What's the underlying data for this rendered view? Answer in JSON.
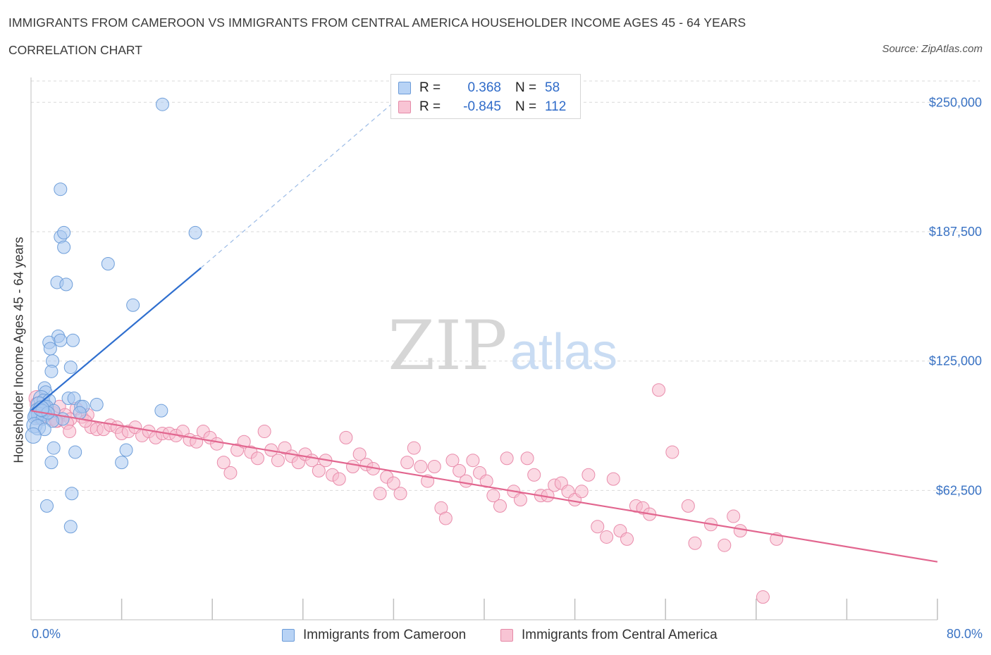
{
  "title": "IMMIGRANTS FROM CAMEROON VS IMMIGRANTS FROM CENTRAL AMERICA HOUSEHOLDER INCOME AGES 45 - 64 YEARS",
  "subtitle": "CORRELATION CHART",
  "source": "Source: ZipAtlas.com",
  "watermark": {
    "zip": "ZIP",
    "atlas": "atlas"
  },
  "colors": {
    "blue_fill": "#a9c8f0",
    "blue_stroke": "#6f9fda",
    "blue_line": "#2f6fcf",
    "pink_fill": "#f7bccd",
    "pink_stroke": "#e98cab",
    "pink_line": "#e2668f",
    "axis_text": "#3a73c4",
    "grid": "#d9d9d9"
  },
  "stats_legend": [
    {
      "r_label": "R =",
      "r_value": "0.368",
      "n_label": "N =",
      "n_value": "58"
    },
    {
      "r_label": "R =",
      "r_value": "-0.845",
      "n_label": "N =",
      "n_value": "112"
    }
  ],
  "legend": [
    {
      "label": "Immigrants from Cameroon"
    },
    {
      "label": "Immigrants from Central America"
    }
  ],
  "chart_data": {
    "type": "scatter",
    "title": "IMMIGRANTS FROM CAMEROON VS IMMIGRANTS FROM CENTRAL AMERICA HOUSEHOLDER INCOME AGES 45 - 64 YEARS",
    "subtitle": "CORRELATION CHART",
    "xlabel": "",
    "ylabel": "Householder Income Ages 45 - 64 years",
    "xlim": [
      0,
      80
    ],
    "ylim": [
      0,
      262000
    ],
    "x_tick_labels": [
      "0.0%",
      "80.0%"
    ],
    "y_ticks": [
      62500,
      125000,
      187500,
      250000
    ],
    "y_tick_labels": [
      "$62,500",
      "$125,000",
      "$187,500",
      "$250,000"
    ],
    "grid": true,
    "legend_position": "bottom",
    "series": [
      {
        "name": "Immigrants from Cameroon",
        "color": "#a9c8f0",
        "trend": {
          "x": [
            0.0,
            15.0
          ],
          "y": [
            101000,
            170000
          ],
          "dashed_to": [
            32.0,
            250000
          ]
        },
        "points": [
          [
            11.6,
            249000
          ],
          [
            2.6,
            208000
          ],
          [
            2.6,
            185000
          ],
          [
            2.9,
            187000
          ],
          [
            2.9,
            180000
          ],
          [
            14.5,
            187000
          ],
          [
            6.8,
            172000
          ],
          [
            2.3,
            163000
          ],
          [
            3.1,
            162000
          ],
          [
            9.0,
            152000
          ],
          [
            2.4,
            137000
          ],
          [
            3.7,
            135000
          ],
          [
            1.6,
            134000
          ],
          [
            2.6,
            135000
          ],
          [
            1.7,
            131000
          ],
          [
            1.9,
            125000
          ],
          [
            1.8,
            120000
          ],
          [
            3.5,
            122000
          ],
          [
            1.2,
            112000
          ],
          [
            1.3,
            110000
          ],
          [
            0.9,
            107000
          ],
          [
            1.1,
            106000
          ],
          [
            1.6,
            106000
          ],
          [
            3.3,
            107000
          ],
          [
            3.8,
            107000
          ],
          [
            0.7,
            104000
          ],
          [
            1.2,
            103000
          ],
          [
            1.4,
            103000
          ],
          [
            4.4,
            103000
          ],
          [
            4.6,
            103000
          ],
          [
            5.8,
            104000
          ],
          [
            0.6,
            101000
          ],
          [
            0.8,
            101000
          ],
          [
            2.0,
            101000
          ],
          [
            4.3,
            100000
          ],
          [
            0.5,
            99000
          ],
          [
            0.7,
            99000
          ],
          [
            1.3,
            99000
          ],
          [
            0.4,
            98000
          ],
          [
            1.0,
            97000
          ],
          [
            2.8,
            97000
          ],
          [
            1.9,
            96000
          ],
          [
            11.5,
            101000
          ],
          [
            0.3,
            94000
          ],
          [
            0.6,
            93000
          ],
          [
            1.2,
            92000
          ],
          [
            0.2,
            89000
          ],
          [
            2.0,
            83000
          ],
          [
            3.9,
            81000
          ],
          [
            8.4,
            82000
          ],
          [
            1.8,
            76000
          ],
          [
            8.0,
            76000
          ],
          [
            3.6,
            61000
          ],
          [
            1.4,
            55000
          ],
          [
            3.5,
            45000
          ],
          [
            1.0,
            101000
          ],
          [
            1.5,
            100000
          ],
          [
            0.9,
            102000
          ]
        ]
      },
      {
        "name": "Immigrants from Central America",
        "color": "#f7bccd",
        "trend": {
          "x": [
            0.0,
            80.0
          ],
          "y": [
            101000,
            28000
          ]
        },
        "points": [
          [
            0.5,
            107000
          ],
          [
            1.0,
            103000
          ],
          [
            1.5,
            101000
          ],
          [
            2.0,
            100000
          ],
          [
            2.5,
            103000
          ],
          [
            3.0,
            99000
          ],
          [
            3.5,
            97000
          ],
          [
            4.0,
            102000
          ],
          [
            4.5,
            98000
          ],
          [
            5.0,
            99000
          ],
          [
            0.8,
            98000
          ],
          [
            1.8,
            97000
          ],
          [
            2.3,
            96000
          ],
          [
            3.2,
            95000
          ],
          [
            3.4,
            91000
          ],
          [
            5.3,
            93000
          ],
          [
            5.8,
            92000
          ],
          [
            6.4,
            92000
          ],
          [
            7.0,
            94000
          ],
          [
            7.6,
            93000
          ],
          [
            8.0,
            90000
          ],
          [
            8.6,
            91000
          ],
          [
            9.2,
            93000
          ],
          [
            9.8,
            89000
          ],
          [
            10.4,
            91000
          ],
          [
            11.0,
            88000
          ],
          [
            11.6,
            90000
          ],
          [
            12.2,
            90000
          ],
          [
            12.8,
            89000
          ],
          [
            13.4,
            91000
          ],
          [
            14.0,
            87000
          ],
          [
            14.6,
            86000
          ],
          [
            15.2,
            91000
          ],
          [
            15.8,
            88000
          ],
          [
            16.4,
            85000
          ],
          [
            17.0,
            76000
          ],
          [
            17.6,
            71000
          ],
          [
            18.2,
            82000
          ],
          [
            18.8,
            86000
          ],
          [
            19.4,
            81000
          ],
          [
            20.0,
            78000
          ],
          [
            20.6,
            91000
          ],
          [
            21.2,
            82000
          ],
          [
            21.8,
            77000
          ],
          [
            22.4,
            83000
          ],
          [
            23.0,
            79000
          ],
          [
            23.6,
            76000
          ],
          [
            24.2,
            80000
          ],
          [
            24.8,
            77000
          ],
          [
            25.4,
            72000
          ],
          [
            26.0,
            77000
          ],
          [
            26.6,
            70000
          ],
          [
            27.2,
            68000
          ],
          [
            27.8,
            88000
          ],
          [
            28.4,
            74000
          ],
          [
            29.0,
            80000
          ],
          [
            29.6,
            75000
          ],
          [
            30.2,
            73000
          ],
          [
            30.8,
            61000
          ],
          [
            31.4,
            69000
          ],
          [
            32.0,
            66000
          ],
          [
            32.6,
            61000
          ],
          [
            33.2,
            76000
          ],
          [
            33.8,
            83000
          ],
          [
            34.4,
            74000
          ],
          [
            35.0,
            67000
          ],
          [
            35.6,
            74000
          ],
          [
            36.2,
            54000
          ],
          [
            36.6,
            49000
          ],
          [
            37.2,
            77000
          ],
          [
            37.8,
            72000
          ],
          [
            38.4,
            67000
          ],
          [
            39.0,
            77000
          ],
          [
            39.6,
            71000
          ],
          [
            40.2,
            67000
          ],
          [
            40.8,
            60000
          ],
          [
            41.4,
            55000
          ],
          [
            42.0,
            78000
          ],
          [
            42.6,
            62000
          ],
          [
            43.2,
            58000
          ],
          [
            43.8,
            78000
          ],
          [
            44.4,
            70000
          ],
          [
            45.0,
            60000
          ],
          [
            45.6,
            60000
          ],
          [
            46.2,
            65000
          ],
          [
            46.8,
            66000
          ],
          [
            47.4,
            62000
          ],
          [
            48.0,
            58000
          ],
          [
            48.6,
            62000
          ],
          [
            49.2,
            70000
          ],
          [
            50.0,
            45000
          ],
          [
            50.8,
            40000
          ],
          [
            51.4,
            68000
          ],
          [
            52.0,
            43000
          ],
          [
            52.6,
            39000
          ],
          [
            53.4,
            55000
          ],
          [
            54.0,
            54000
          ],
          [
            54.6,
            51000
          ],
          [
            55.4,
            111000
          ],
          [
            56.6,
            81000
          ],
          [
            58.0,
            55000
          ],
          [
            58.6,
            37000
          ],
          [
            60.0,
            46000
          ],
          [
            61.2,
            36000
          ],
          [
            62.0,
            50000
          ],
          [
            62.6,
            43000
          ],
          [
            64.6,
            11000
          ],
          [
            65.8,
            39000
          ],
          [
            2.2,
            96000
          ],
          [
            4.8,
            96000
          ],
          [
            0.6,
            104000
          ],
          [
            1.3,
            103000
          ]
        ]
      }
    ]
  }
}
